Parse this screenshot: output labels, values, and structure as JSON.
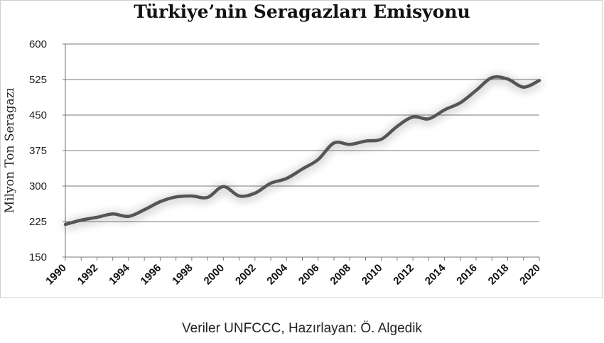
{
  "chart_data": {
    "type": "line",
    "title": "Türkiye’nin Seragazları Emisyonu",
    "xlabel": "",
    "ylabel": "Milyon Ton Seragazı",
    "ylim": [
      150,
      600
    ],
    "yticks": [
      "600",
      "525",
      "450",
      "375",
      "300",
      "225",
      "150"
    ],
    "xticks": [
      "1990",
      "1992",
      "1994",
      "1996",
      "1998",
      "2000",
      "2002",
      "2004",
      "2006",
      "2008",
      "2010",
      "2012",
      "2014",
      "2016",
      "2018",
      "2020"
    ],
    "xlim": [
      1990,
      2020
    ],
    "grid": "horizontal",
    "line_color": "#555555",
    "x": [
      1990,
      1991,
      1992,
      1993,
      1994,
      1995,
      1996,
      1997,
      1998,
      1999,
      2000,
      2001,
      2002,
      2003,
      2004,
      2005,
      2006,
      2007,
      2008,
      2009,
      2010,
      2011,
      2012,
      2013,
      2014,
      2015,
      2016,
      2017,
      2018,
      2019,
      2020
    ],
    "values": [
      219,
      228,
      234,
      241,
      236,
      250,
      267,
      277,
      279,
      276,
      299,
      279,
      285,
      306,
      316,
      336,
      356,
      391,
      388,
      395,
      399,
      426,
      446,
      442,
      461,
      476,
      502,
      529,
      526,
      509,
      523
    ]
  },
  "footer": {
    "credit": "Veriler UNFCCC, Hazırlayan: Ö. Algedik"
  }
}
